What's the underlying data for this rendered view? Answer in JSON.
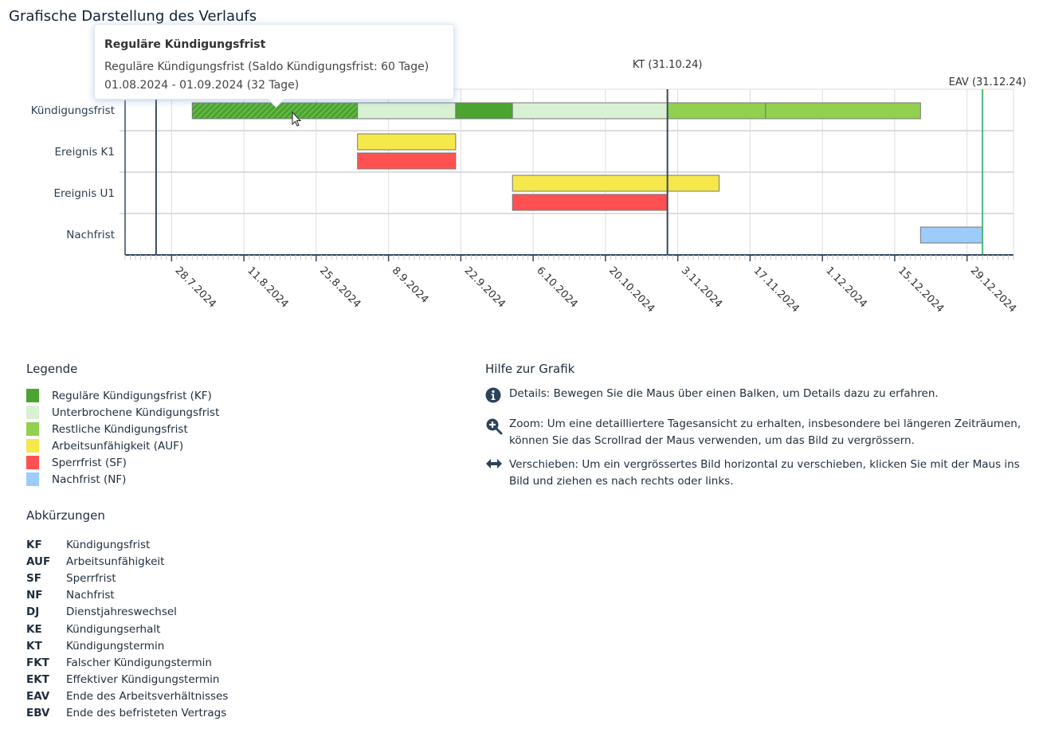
{
  "page_title": "Grafische Darstellung des Verlaufs",
  "tooltip": {
    "title": "Reguläre Kündigungsfrist",
    "line1": "Reguläre Kündigungsfrist (Saldo Kündigungsfrist: 60 Tage)",
    "line2": "01.08.2024 - 01.09.2024 (32 Tage)"
  },
  "chart_data": {
    "type": "gantt",
    "x_range": [
      "2024-07-19",
      "2025-01-07"
    ],
    "x_tick_labels": [
      "28.7.2024",
      "11.8.2024",
      "25.8.2024",
      "8.9.2024",
      "22.9.2024",
      "6.10.2024",
      "20.10.2024",
      "3.11.2024",
      "17.11.2024",
      "1.12.2024",
      "15.12.2024",
      "29.12.2024"
    ],
    "x_ticks": [
      "2024-07-28",
      "2024-08-11",
      "2024-08-25",
      "2024-09-08",
      "2024-09-22",
      "2024-10-06",
      "2024-10-20",
      "2024-11-03",
      "2024-11-17",
      "2024-12-01",
      "2024-12-15",
      "2024-12-29"
    ],
    "grid": true,
    "rows": [
      "Kündigungsfrist",
      "Ereignis K1",
      "Ereignis U1",
      "Nachfrist"
    ],
    "bars": [
      {
        "row": 0,
        "lane": "single",
        "start": "2024-08-01",
        "end": "2024-09-01",
        "type": "regular",
        "hatched": true
      },
      {
        "row": 0,
        "lane": "single",
        "start": "2024-09-02",
        "end": "2024-09-20",
        "type": "interrupted"
      },
      {
        "row": 0,
        "lane": "single",
        "start": "2024-09-21",
        "end": "2024-10-01",
        "type": "regular"
      },
      {
        "row": 0,
        "lane": "single",
        "start": "2024-10-02",
        "end": "2024-10-31",
        "type": "interrupted"
      },
      {
        "row": 0,
        "lane": "single",
        "start": "2024-11-01",
        "end": "2024-11-19",
        "type": "remaining"
      },
      {
        "row": 0,
        "lane": "single",
        "start": "2024-11-20",
        "end": "2024-12-19",
        "type": "remaining"
      },
      {
        "row": 1,
        "lane": "upper",
        "start": "2024-09-02",
        "end": "2024-09-20",
        "type": "auf"
      },
      {
        "row": 1,
        "lane": "lower",
        "start": "2024-09-02",
        "end": "2024-09-20",
        "type": "sf"
      },
      {
        "row": 2,
        "lane": "upper",
        "start": "2024-10-02",
        "end": "2024-11-10",
        "type": "auf"
      },
      {
        "row": 2,
        "lane": "lower",
        "start": "2024-10-02",
        "end": "2024-10-31",
        "type": "sf"
      },
      {
        "row": 3,
        "lane": "single",
        "start": "2024-12-20",
        "end": "2024-12-31",
        "type": "nf"
      }
    ],
    "markers": [
      {
        "date": "2024-07-24",
        "label": "",
        "color": "#34495e"
      },
      {
        "date": "2024-10-31",
        "label": "KT (31.10.24)",
        "color": "#34495e"
      },
      {
        "date": "2024-12-31",
        "label": "EAV (31.12.24)",
        "color": "#4cb87a"
      }
    ],
    "colors": {
      "regular": "#4ba42f",
      "interrupted": "#d9f1d3",
      "remaining": "#92d050",
      "auf": "#f5e84b",
      "sf": "#ff5151",
      "nf": "#9dcbfa"
    }
  },
  "legend": {
    "title": "Legende",
    "items": [
      {
        "label": "Reguläre Kündigungsfrist (KF)",
        "color": "#4ba42f"
      },
      {
        "label": "Unterbrochene Kündigungsfrist",
        "color": "#d9f1d3"
      },
      {
        "label": "Restliche Kündigungsfrist",
        "color": "#92d050"
      },
      {
        "label": "Arbeitsunfähigkeit (AUF)",
        "color": "#f5e84b"
      },
      {
        "label": "Sperrfrist (SF)",
        "color": "#ff5151"
      },
      {
        "label": "Nachfrist (NF)",
        "color": "#9dcbfa"
      }
    ]
  },
  "abbreviations": {
    "title": "Abkürzungen",
    "items": [
      {
        "k": "KF",
        "v": "Kündigungsfrist"
      },
      {
        "k": "AUF",
        "v": "Arbeitsunfähigkeit"
      },
      {
        "k": "SF",
        "v": "Sperrfrist"
      },
      {
        "k": "NF",
        "v": "Nachfrist"
      },
      {
        "k": "DJ",
        "v": "Dienstjahreswechsel"
      },
      {
        "k": "KE",
        "v": "Kündigungserhalt"
      },
      {
        "k": "KT",
        "v": "Kündigungstermin"
      },
      {
        "k": "FKT",
        "v": "Falscher Kündigungstermin"
      },
      {
        "k": "EKT",
        "v": "Effektiver Kündigungstermin"
      },
      {
        "k": "EAV",
        "v": "Ende des Arbeitsverhältnisses"
      },
      {
        "k": "EBV",
        "v": "Ende des befristeten Vertrags"
      }
    ]
  },
  "help": {
    "title": "Hilfe zur Grafik",
    "items": [
      {
        "icon": "info-icon",
        "text": "Details: Bewegen Sie die Maus über einen Balken, um Details dazu zu erfahren."
      },
      {
        "icon": "zoom-in-icon",
        "text": "Zoom: Um eine detailliertere Tagesansicht zu erhalten, insbesondere bei längeren Zeiträumen, können Sie das Scrollrad der Maus verwenden, um das Bild zu vergrössern."
      },
      {
        "icon": "arrows-horizontal-icon",
        "text": "Verschieben: Um ein vergrössertes Bild horizontal zu verschieben, klicken Sie mit der Maus ins Bild und ziehen es nach rechts oder links."
      }
    ]
  }
}
